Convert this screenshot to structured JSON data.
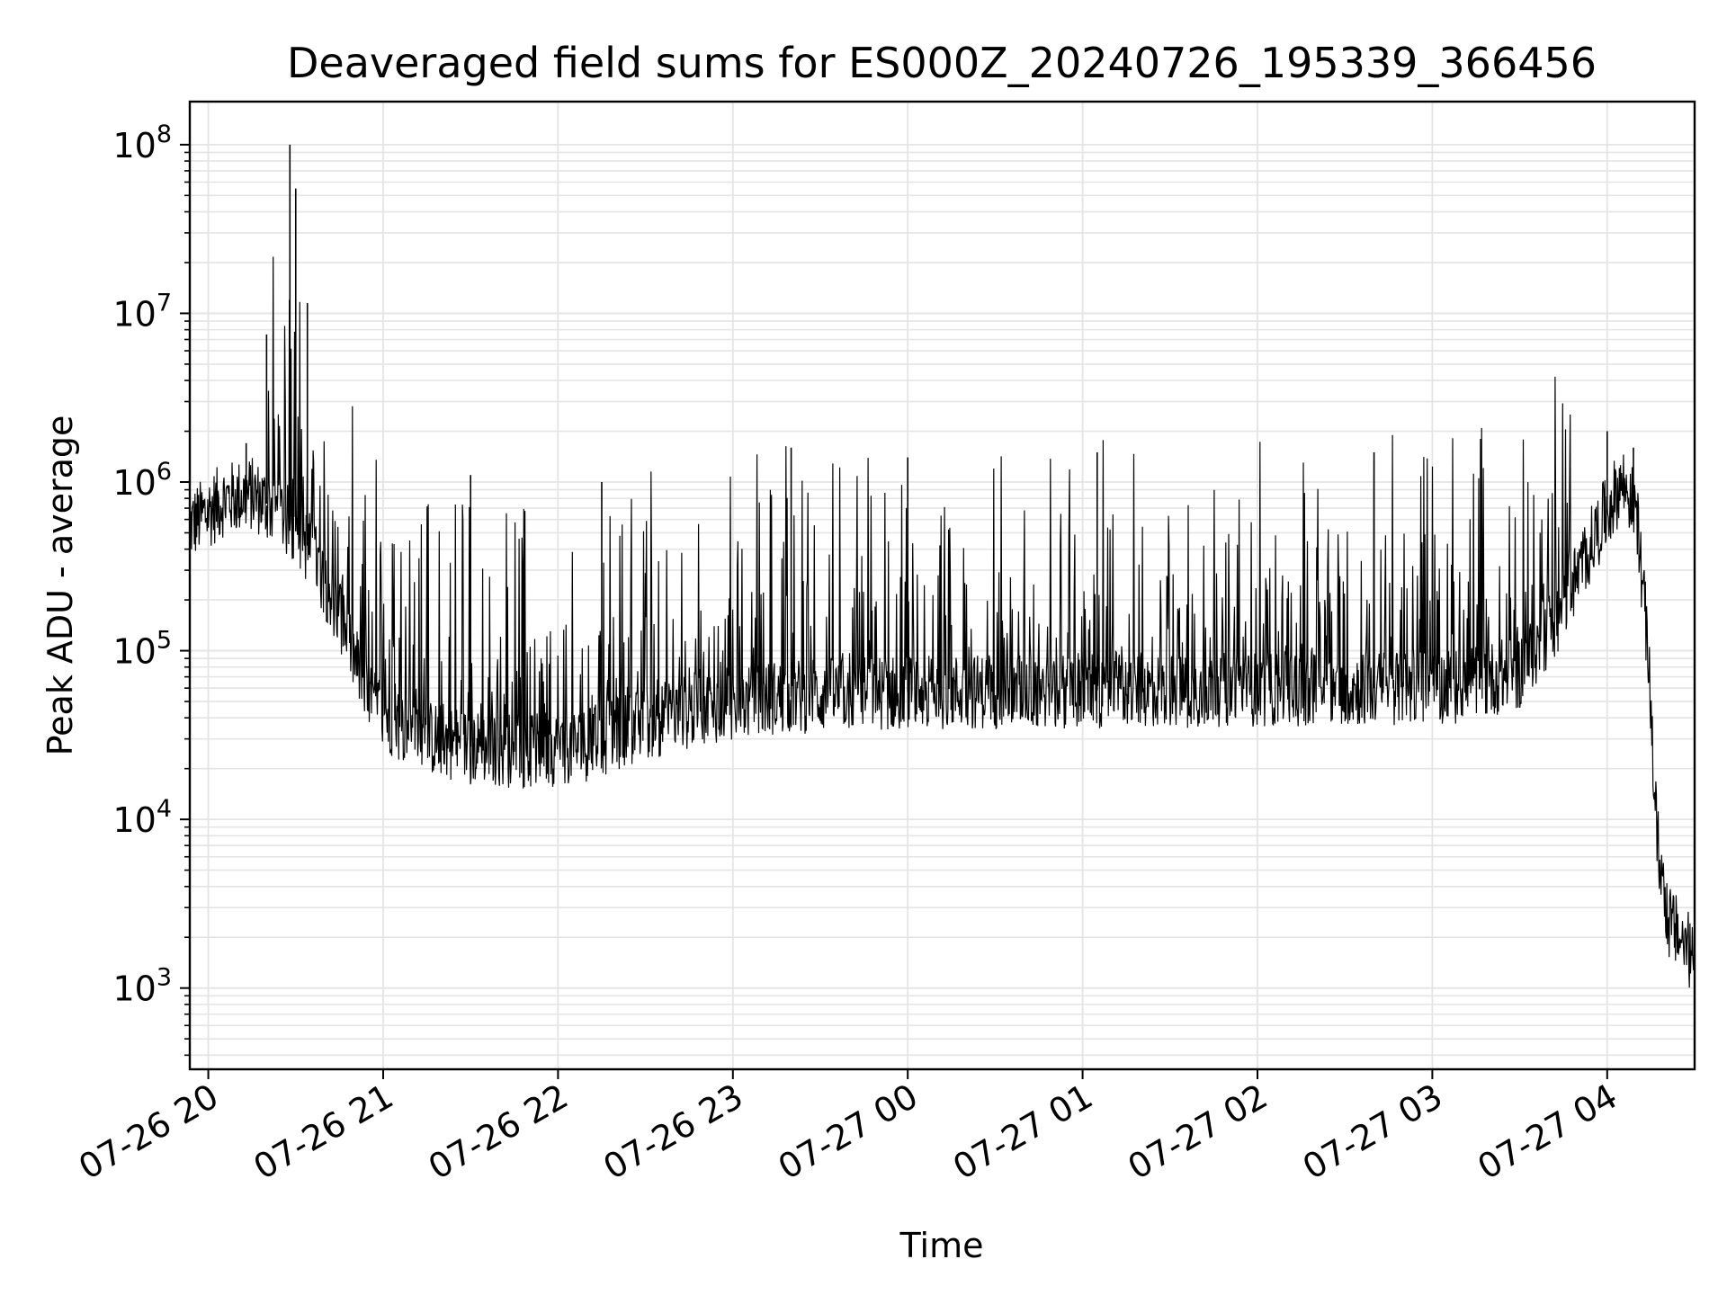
{
  "chart_data": {
    "type": "line",
    "title": "Deaveraged field sums for ES000Z_20240726_195339_366456",
    "xlabel": "Time",
    "ylabel": "Peak ADU - average",
    "yscale": "log",
    "ylim": [
      330,
      180000000
    ],
    "xlim": [
      "2024-07-26T19:53:39",
      "2024-07-27T04:30:00"
    ],
    "grid": true,
    "x_ticks": [
      {
        "t": "2024-07-26T20:00",
        "label": "07-26 20"
      },
      {
        "t": "2024-07-26T21:00",
        "label": "07-26 21"
      },
      {
        "t": "2024-07-26T22:00",
        "label": "07-26 22"
      },
      {
        "t": "2024-07-26T23:00",
        "label": "07-26 23"
      },
      {
        "t": "2024-07-27T00:00",
        "label": "07-27 00"
      },
      {
        "t": "2024-07-27T01:00",
        "label": "07-27 01"
      },
      {
        "t": "2024-07-27T02:00",
        "label": "07-27 02"
      },
      {
        "t": "2024-07-27T03:00",
        "label": "07-27 03"
      },
      {
        "t": "2024-07-27T04:00",
        "label": "07-27 04"
      }
    ],
    "y_ticks": [
      {
        "value": 1000,
        "base": "10",
        "exp": "3"
      },
      {
        "value": 10000,
        "base": "10",
        "exp": "4"
      },
      {
        "value": 100000,
        "base": "10",
        "exp": "5"
      },
      {
        "value": 1000000,
        "base": "10",
        "exp": "6"
      },
      {
        "value": 10000000,
        "base": "10",
        "exp": "7"
      },
      {
        "value": 100000000,
        "base": "10",
        "exp": "8"
      }
    ],
    "series": [
      {
        "color": "#000000",
        "baseline": [
          {
            "t": "2024-07-26T19:53:39",
            "y": 550000
          },
          {
            "t": "2024-07-26T20:05",
            "y": 780000
          },
          {
            "t": "2024-07-26T20:15",
            "y": 850000
          },
          {
            "t": "2024-07-26T20:25",
            "y": 650000
          },
          {
            "t": "2024-07-26T20:35",
            "y": 400000
          },
          {
            "t": "2024-07-26T20:45",
            "y": 170000
          },
          {
            "t": "2024-07-26T20:55",
            "y": 50000
          },
          {
            "t": "2024-07-26T21:10",
            "y": 32000
          },
          {
            "t": "2024-07-26T21:30",
            "y": 27000
          },
          {
            "t": "2024-07-26T21:50",
            "y": 25000
          },
          {
            "t": "2024-07-26T22:10",
            "y": 28000
          },
          {
            "t": "2024-07-26T22:30",
            "y": 37000
          },
          {
            "t": "2024-07-26T22:50",
            "y": 46000
          },
          {
            "t": "2024-07-26T23:15",
            "y": 53000
          },
          {
            "t": "2024-07-27T00:00",
            "y": 57000
          },
          {
            "t": "2024-07-27T01:00",
            "y": 58000
          },
          {
            "t": "2024-07-27T02:00",
            "y": 59000
          },
          {
            "t": "2024-07-27T02:40",
            "y": 60000
          },
          {
            "t": "2024-07-27T03:10",
            "y": 62000
          },
          {
            "t": "2024-07-27T03:30",
            "y": 75000
          },
          {
            "t": "2024-07-27T03:45",
            "y": 180000
          },
          {
            "t": "2024-07-27T03:55",
            "y": 450000
          },
          {
            "t": "2024-07-27T04:05",
            "y": 1000000
          },
          {
            "t": "2024-07-27T04:10",
            "y": 700000
          },
          {
            "t": "2024-07-27T04:14",
            "y": 100000
          },
          {
            "t": "2024-07-27T04:17",
            "y": 8000
          },
          {
            "t": "2024-07-27T04:21",
            "y": 2500
          },
          {
            "t": "2024-07-27T04:30",
            "y": 1500
          }
        ],
        "peaks": [
          {
            "t": "2024-07-26T20:13",
            "y": 1700000
          },
          {
            "t": "2024-07-26T20:20",
            "y": 7500000
          },
          {
            "t": "2024-07-26T20:28",
            "y": 100000000
          },
          {
            "t": "2024-07-26T20:30",
            "y": 55000000
          },
          {
            "t": "2024-07-26T20:34",
            "y": 11500000
          },
          {
            "t": "2024-07-26T21:30",
            "y": 1100000
          },
          {
            "t": "2024-07-26T22:15",
            "y": 1000000
          },
          {
            "t": "2024-07-26T23:20",
            "y": 1600000
          },
          {
            "t": "2024-07-27T00:00",
            "y": 1400000
          },
          {
            "t": "2024-07-27T01:05",
            "y": 1500000
          },
          {
            "t": "2024-07-27T02:40",
            "y": 1500000
          },
          {
            "t": "2024-07-27T04:00",
            "y": 2000000
          },
          {
            "t": "2024-07-27T04:09",
            "y": 1600000
          }
        ]
      }
    ]
  }
}
